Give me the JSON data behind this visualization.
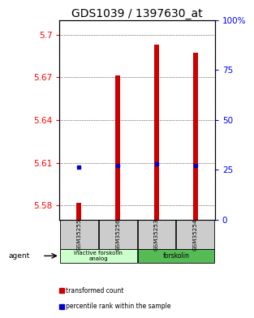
{
  "title": "GDS1039 / 1397630_at",
  "samples": [
    "GSM35255",
    "GSM35256",
    "GSM35253",
    "GSM35254"
  ],
  "red_values": [
    5.582,
    5.671,
    5.693,
    5.687
  ],
  "blue_values": [
    5.607,
    5.608,
    5.609,
    5.608
  ],
  "ylim_left": [
    5.57,
    5.71
  ],
  "ylim_right": [
    0,
    100
  ],
  "yticks_left": [
    5.58,
    5.61,
    5.64,
    5.67,
    5.7
  ],
  "yticks_right": [
    0,
    25,
    50,
    75,
    100
  ],
  "ytick_labels_right": [
    "0",
    "25",
    "50",
    "75",
    "100%"
  ],
  "bar_color": "#cc0000",
  "dot_color": "#0000cc",
  "background_color": "#ffffff",
  "bar_width": 0.12,
  "agent_label": "agent",
  "legend_red": "transformed count",
  "legend_blue": "percentile rank within the sample",
  "title_fontsize": 10,
  "tick_fontsize": 7.5,
  "group1_color": "#ccffcc",
  "group2_color": "#55bb55",
  "sample_box_color": "#cccccc",
  "group1_label": "inactive forskolin\nanalog",
  "group2_label": "forskolin"
}
